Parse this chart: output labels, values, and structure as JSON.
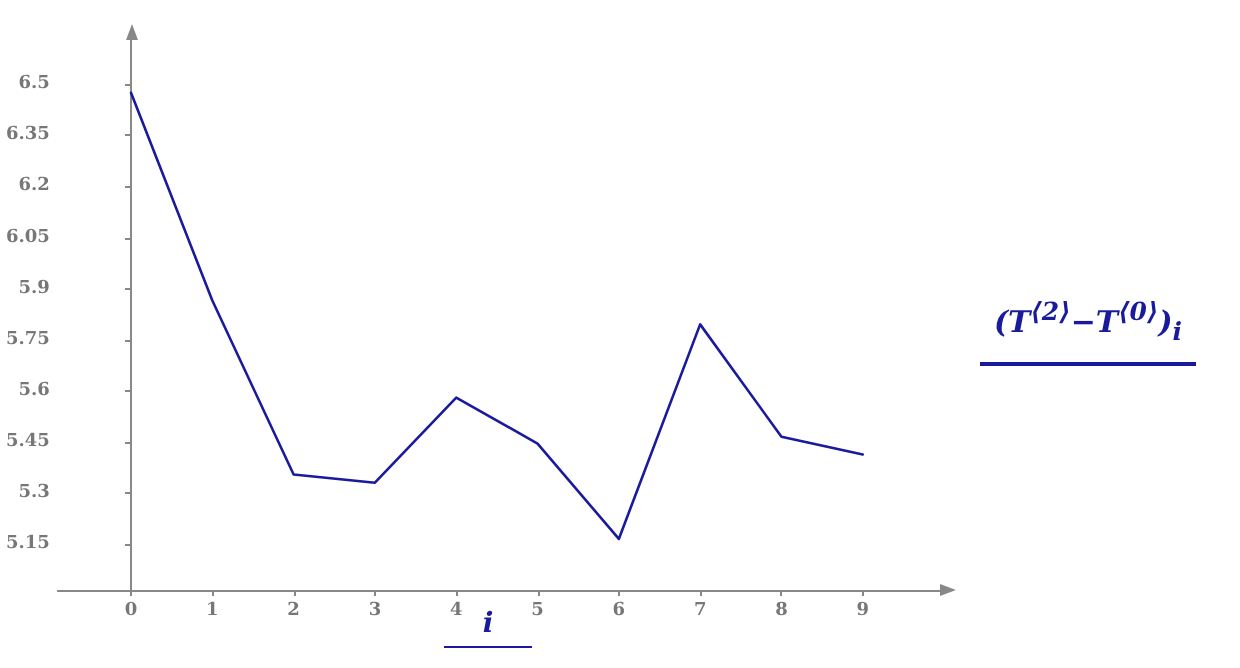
{
  "chart_data": {
    "type": "line",
    "xlabel": "i",
    "x": [
      0,
      1,
      2,
      3,
      4,
      5,
      6,
      7,
      8,
      9
    ],
    "series": [
      {
        "name": "(T$^{⟨2⟩}$−T$^{⟨0⟩}$)$_{i}$",
        "color": "#1a1a9c",
        "values": [
          6.475,
          5.865,
          5.354,
          5.33,
          5.58,
          5.445,
          5.165,
          5.795,
          5.465,
          5.413
        ]
      }
    ],
    "xlim": [
      -0.9,
      9.95
    ],
    "xticks": [
      0,
      1,
      2,
      3,
      4,
      5,
      6,
      7,
      8,
      9
    ],
    "ylim": [
      5.015,
      6.63
    ],
    "yticks": [
      5.15,
      5.3,
      5.45,
      5.6,
      5.75,
      5.9,
      6.05,
      6.2,
      6.35,
      6.5
    ],
    "legend": "right",
    "marker": "none",
    "line_style": "solid"
  }
}
